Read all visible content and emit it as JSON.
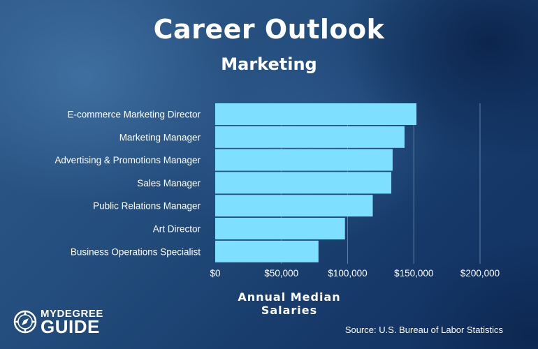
{
  "title": "Career Outlook",
  "subtitle": "Marketing",
  "chart_data": {
    "type": "bar",
    "orientation": "horizontal",
    "categories": [
      "E-commerce Marketing Director",
      "Marketing Manager",
      "Advertising & Promotions Manager",
      "Sales Manager",
      "Public Relations Manager",
      "Art Director",
      "Business Operations Specialist"
    ],
    "values": [
      152000,
      143000,
      134000,
      133000,
      119000,
      98000,
      78000
    ],
    "xlim": [
      0,
      200000
    ],
    "xticks": [
      0,
      50000,
      100000,
      150000,
      200000
    ],
    "xtick_labels": [
      "$0",
      "$50,000",
      "$100,000",
      "$150,000",
      "$200,000"
    ],
    "xlabel": "Annual Median Salaries",
    "ylabel": "",
    "grid": "vertical",
    "bar_color": "#7fdfff",
    "grid_color": "#5f7fa6"
  },
  "source": "Source: U.S. Bureau of Labor Statistics",
  "logo": {
    "line1": "MYDEGREE",
    "line2": "GUIDE",
    "icon": "compass-icon"
  }
}
